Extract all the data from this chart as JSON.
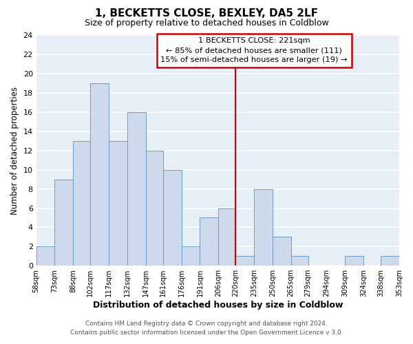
{
  "title": "1, BECKETTS CLOSE, BEXLEY, DA5 2LF",
  "subtitle": "Size of property relative to detached houses in Coldblow",
  "xlabel": "Distribution of detached houses by size in Coldblow",
  "ylabel": "Number of detached properties",
  "bar_labels": [
    "58sqm",
    "73sqm",
    "88sqm",
    "102sqm",
    "117sqm",
    "132sqm",
    "147sqm",
    "161sqm",
    "176sqm",
    "191sqm",
    "206sqm",
    "220sqm",
    "235sqm",
    "250sqm",
    "265sqm",
    "279sqm",
    "294sqm",
    "309sqm",
    "324sqm",
    "338sqm",
    "353sqm"
  ],
  "bar_values": [
    2,
    9,
    13,
    19,
    13,
    16,
    12,
    10,
    2,
    5,
    6,
    1,
    8,
    3,
    1,
    0,
    0,
    1,
    0,
    1
  ],
  "bin_edges": [
    58,
    73,
    88,
    102,
    117,
    132,
    147,
    161,
    176,
    191,
    206,
    220,
    235,
    250,
    265,
    279,
    294,
    309,
    324,
    338,
    353
  ],
  "bar_color": "#ccdaec",
  "bar_edge_color": "#6a9cc8",
  "vline_x": 220,
  "vline_color": "#cc0000",
  "annotation_title": "1 BECKETTS CLOSE: 221sqm",
  "annotation_line1": "← 85% of detached houses are smaller (111)",
  "annotation_line2": "15% of semi-detached houses are larger (19) →",
  "annotation_box_color": "#ffffff",
  "annotation_box_edge": "#cc0000",
  "ylim": [
    0,
    24
  ],
  "yticks": [
    0,
    2,
    4,
    6,
    8,
    10,
    12,
    14,
    16,
    18,
    20,
    22,
    24
  ],
  "footer1": "Contains HM Land Registry data © Crown copyright and database right 2024.",
  "footer2": "Contains public sector information licensed under the Open Government Licence v 3.0.",
  "plot_bg_color": "#e8eef5",
  "fig_bg_color": "#ffffff",
  "grid_color": "#ffffff"
}
